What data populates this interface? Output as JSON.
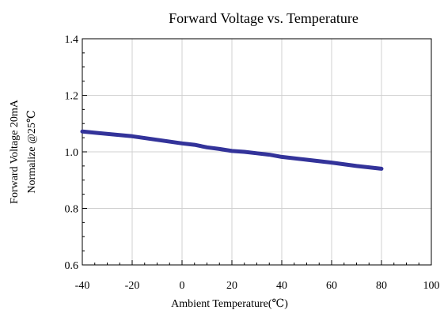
{
  "chart_data": {
    "type": "line",
    "title": "Forward Voltage vs. Temperature",
    "xlabel": "Ambient Temperature(℃)",
    "ylabel_lines": [
      "Forward Voltage 20mA",
      "Normalize @25℃"
    ],
    "xlim": [
      -40,
      100
    ],
    "ylim": [
      0.6,
      1.4
    ],
    "x_ticks": [
      -40,
      -20,
      0,
      20,
      40,
      60,
      80,
      100
    ],
    "x_tick_labels": [
      "-40",
      "-20",
      "0",
      "20",
      "40",
      "60",
      "80",
      "100"
    ],
    "y_ticks": [
      0.6,
      0.8,
      1.0,
      1.2,
      1.4
    ],
    "y_tick_labels": [
      "0.6",
      "0.8",
      "1.0",
      "1.2",
      "1.4"
    ],
    "grid": true,
    "series": [
      {
        "color": "#33339a",
        "x": [
          -40,
          -20,
          0,
          5,
          10,
          15,
          20,
          25,
          30,
          35,
          40,
          50,
          60,
          70,
          80
        ],
        "y": [
          1.072,
          1.055,
          1.03,
          1.025,
          1.016,
          1.01,
          1.003,
          1.0,
          0.995,
          0.99,
          0.982,
          0.972,
          0.962,
          0.95,
          0.94
        ]
      }
    ]
  }
}
